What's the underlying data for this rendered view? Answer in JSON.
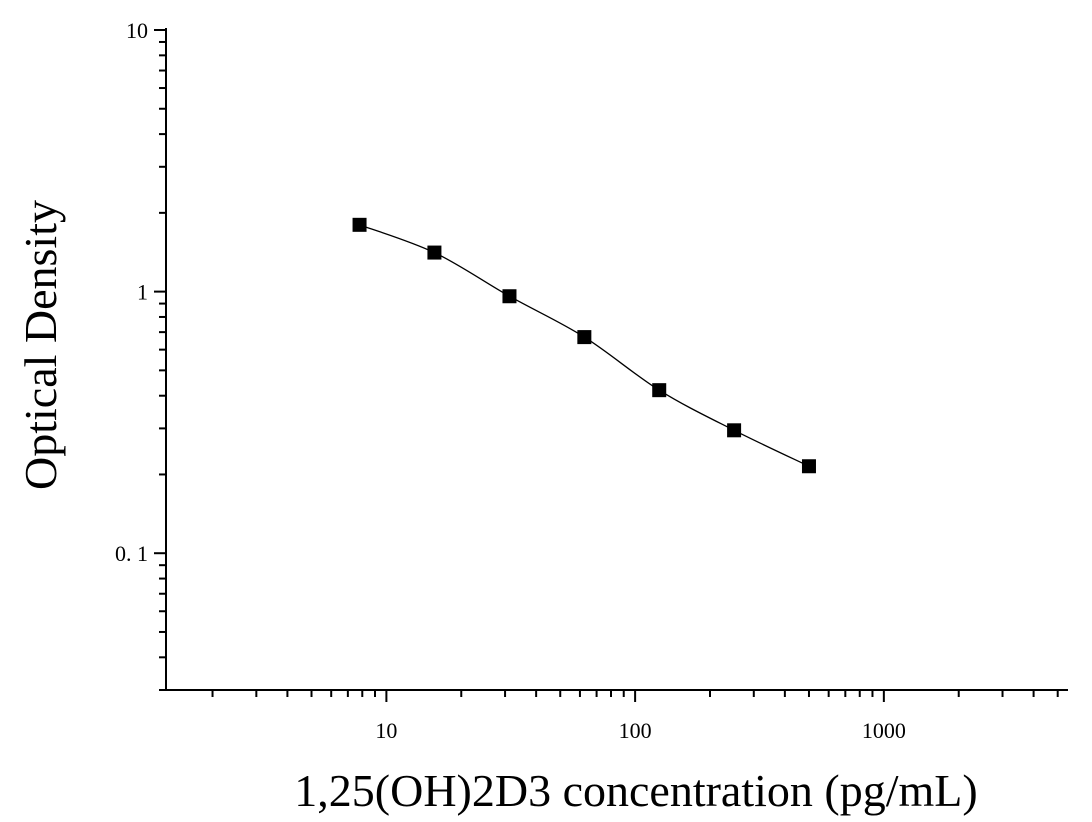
{
  "chart_data": {
    "type": "scatter",
    "title": "",
    "xlabel": "1,25(OH)2D3 concentration (pg/mL)",
    "ylabel": "Optical Density",
    "x_scale": "log",
    "y_scale": "log",
    "xlim": [
      1.3,
      5500
    ],
    "ylim": [
      0.03,
      10
    ],
    "x_ticks": [
      {
        "value": 10,
        "label": "10"
      },
      {
        "value": 100,
        "label": "100"
      },
      {
        "value": 1000,
        "label": "1000"
      }
    ],
    "y_ticks": [
      {
        "value": 10,
        "label": "10"
      },
      {
        "value": 1,
        "label": "1"
      },
      {
        "value": 0.1,
        "label": "0. 1"
      }
    ],
    "grid": false,
    "legend": "none",
    "marker": "square",
    "marker_color": "#000000",
    "line_color": "#000000",
    "fit_curve": true,
    "x": [
      7.8,
      15.6,
      31.25,
      62.5,
      125,
      250,
      500
    ],
    "y": [
      1.8,
      1.41,
      0.96,
      0.67,
      0.42,
      0.295,
      0.215
    ]
  }
}
